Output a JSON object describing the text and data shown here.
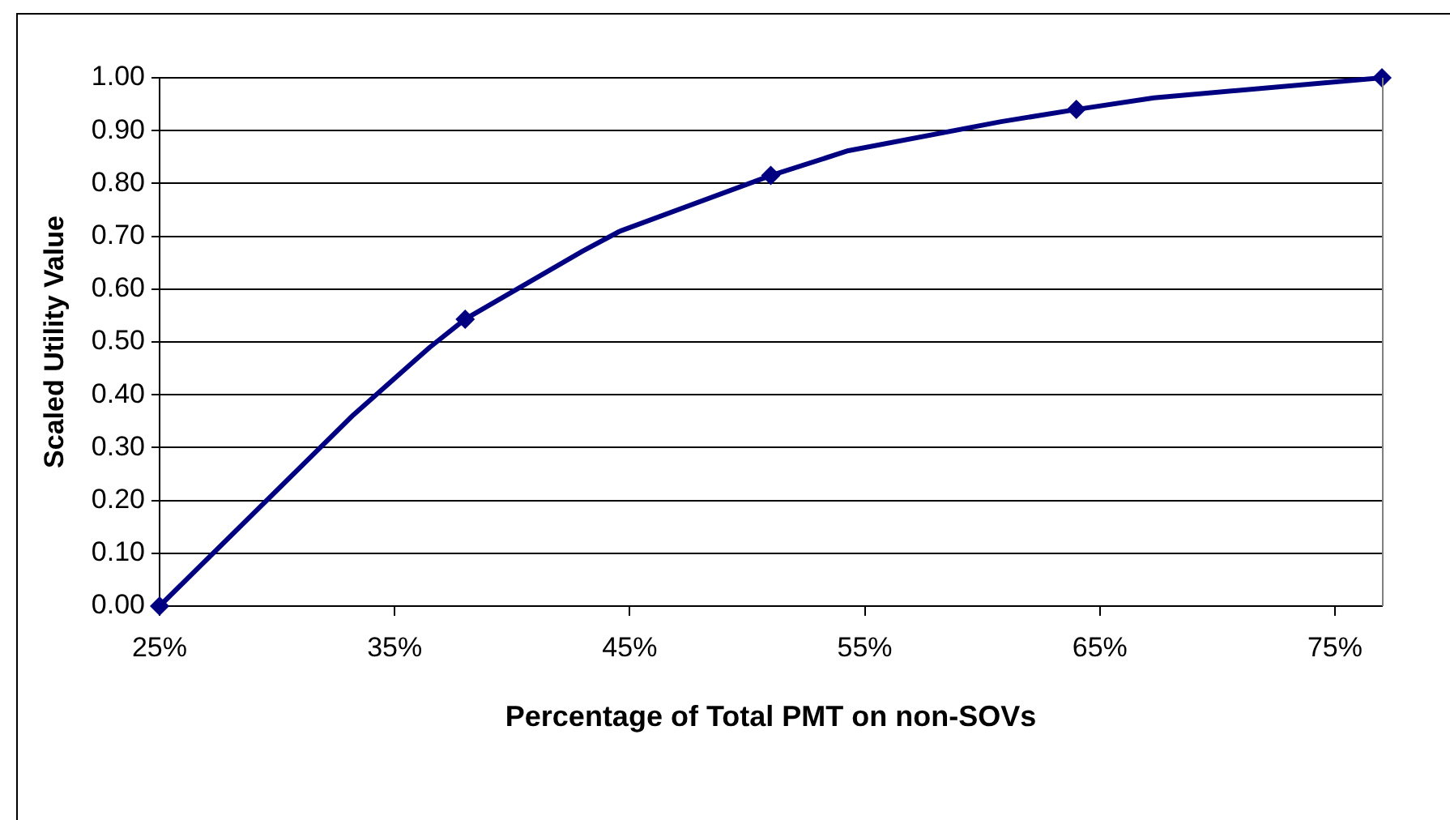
{
  "chart_data": {
    "type": "line",
    "xlabel": "Percentage of Total PMT on non-SOVs",
    "ylabel": "Scaled Utility Value",
    "x": [
      25,
      33.25,
      36.5,
      38,
      43,
      44.6,
      51,
      54.3,
      60.8,
      64,
      67.3,
      77
    ],
    "series": [
      {
        "color": "#000080",
        "marker": "none",
        "values": [
          0,
          0.362,
          0.49,
          0.543,
          0.672,
          0.71,
          0.815,
          0.862,
          0.917,
          0.94,
          0.962,
          1.0
        ]
      },
      {
        "type": "scatter",
        "color": "#000080",
        "marker": "diamond",
        "x": [
          25,
          38,
          51,
          64,
          77
        ],
        "values": [
          0,
          0.543,
          0.815,
          0.94,
          1.0
        ]
      }
    ],
    "xlim": [
      25,
      77
    ],
    "xticks": [
      {
        "value": 25,
        "label": "25%"
      },
      {
        "value": 35,
        "label": "35%"
      },
      {
        "value": 45,
        "label": "45%"
      },
      {
        "value": 55,
        "label": "55%"
      },
      {
        "value": 65,
        "label": "65%"
      },
      {
        "value": 75,
        "label": "75%"
      }
    ],
    "ylim": [
      0,
      1
    ],
    "yticks": [
      {
        "value": 0,
        "label": "0.00"
      },
      {
        "value": 0.1,
        "label": "0.10"
      },
      {
        "value": 0.2,
        "label": "0.20"
      },
      {
        "value": 0.3,
        "label": "0.30"
      },
      {
        "value": 0.4,
        "label": "0.40"
      },
      {
        "value": 0.5,
        "label": "0.50"
      },
      {
        "value": 0.6,
        "label": "0.60"
      },
      {
        "value": 0.7,
        "label": "0.70"
      },
      {
        "value": 0.8,
        "label": "0.80"
      },
      {
        "value": 0.9,
        "label": "0.90"
      },
      {
        "value": 1,
        "label": "1.00"
      }
    ],
    "grid": "y",
    "legend": false
  }
}
